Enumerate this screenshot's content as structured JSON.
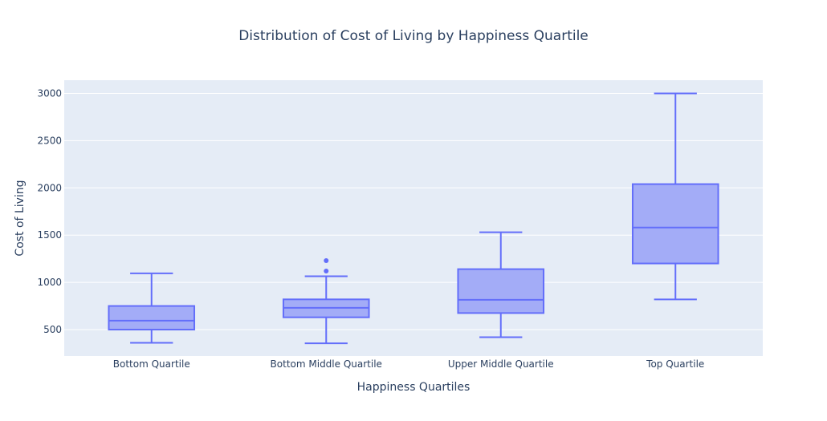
{
  "chart_data": {
    "type": "box",
    "title": "Distribution of Cost of Living by Happiness Quartile",
    "xlabel": "Happiness Quartiles",
    "ylabel": "Cost of Living",
    "ylim": [
      220,
      3140
    ],
    "y_ticks": [
      500,
      1000,
      1500,
      2000,
      2500,
      3000
    ],
    "grid": true,
    "colors": {
      "box_fill": "#a3acf7",
      "box_line": "#636efa",
      "plot_bg": "#e5ecf6",
      "grid": "#ffffff",
      "text": "#2a3f5f"
    },
    "categories": [
      "Bottom Quartile",
      "Bottom Middle Quartile",
      "Upper Middle Quartile",
      "Top Quartile"
    ],
    "boxes": [
      {
        "min": 360,
        "q1": 500,
        "median": 595,
        "q3": 750,
        "max": 1095,
        "outliers": []
      },
      {
        "min": 355,
        "q1": 630,
        "median": 730,
        "q3": 820,
        "max": 1065,
        "outliers": [
          1120,
          1230
        ]
      },
      {
        "min": 420,
        "q1": 675,
        "median": 815,
        "q3": 1140,
        "max": 1530,
        "outliers": []
      },
      {
        "min": 820,
        "q1": 1200,
        "median": 1580,
        "q3": 2040,
        "max": 3000,
        "outliers": []
      }
    ]
  }
}
